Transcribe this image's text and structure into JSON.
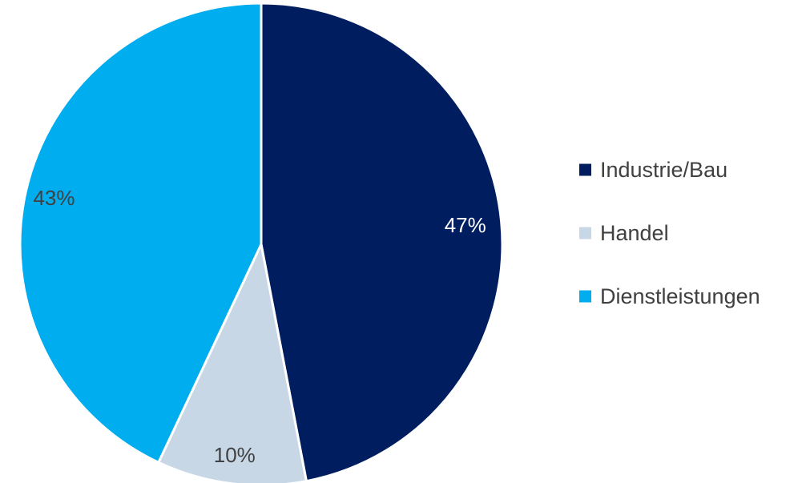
{
  "chart_data": {
    "type": "pie",
    "title": "",
    "categories": [
      "Industrie/Bau",
      "Handel",
      "Dienstleistungen"
    ],
    "values": [
      47,
      10,
      43
    ],
    "data_labels": [
      "47%",
      "10%",
      "43%"
    ],
    "colors": [
      "#001e5f",
      "#c8d7e6",
      "#00adef"
    ],
    "label_colors": [
      "#ffffff",
      "#404040",
      "#404040"
    ],
    "start_angle_deg": 0,
    "direction": "clockwise",
    "legend_position": "right"
  }
}
